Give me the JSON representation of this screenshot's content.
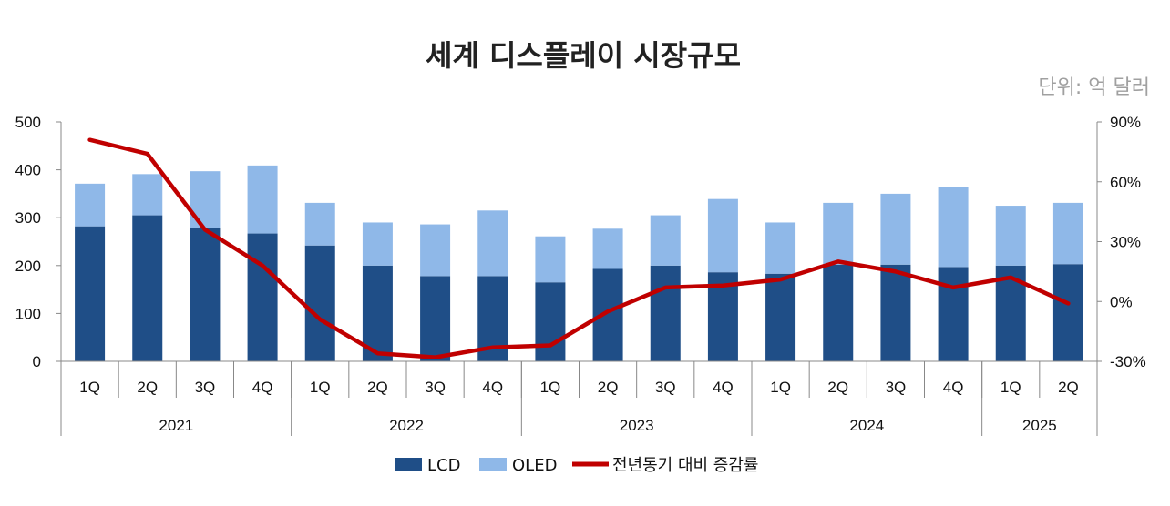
{
  "chart_data": {
    "type": "bar",
    "title": "세계 디스플레이 시장규모",
    "unit_label": "단위: 억 달러",
    "categories": [
      "1Q",
      "2Q",
      "3Q",
      "4Q",
      "1Q",
      "2Q",
      "3Q",
      "4Q",
      "1Q",
      "2Q",
      "3Q",
      "4Q",
      "1Q",
      "2Q",
      "3Q",
      "4Q",
      "1Q",
      "2Q"
    ],
    "year_groups": [
      {
        "label": "2021",
        "count": 4
      },
      {
        "label": "2022",
        "count": 4
      },
      {
        "label": "2023",
        "count": 4
      },
      {
        "label": "2024",
        "count": 4
      },
      {
        "label": "2025",
        "count": 2
      }
    ],
    "stacked": true,
    "series": [
      {
        "name": "LCD",
        "type": "bar",
        "color": "#1f4e87",
        "values": [
          282,
          305,
          278,
          267,
          242,
          200,
          178,
          178,
          165,
          193,
          200,
          186,
          183,
          202,
          202,
          197,
          200,
          203
        ]
      },
      {
        "name": "OLED",
        "type": "bar",
        "color": "#8fb8e8",
        "values": [
          89,
          86,
          119,
          142,
          89,
          90,
          108,
          137,
          96,
          84,
          105,
          153,
          107,
          129,
          148,
          167,
          125,
          128
        ]
      },
      {
        "name": "전년동기 대비 증감률",
        "type": "line",
        "color": "#c00000",
        "axis": "right",
        "values": [
          81,
          74,
          36,
          18,
          -9,
          -26,
          -28,
          -23,
          -22,
          -5,
          7,
          8,
          11,
          20,
          15,
          7,
          12,
          -1
        ]
      }
    ],
    "y_left": {
      "ylim": [
        0,
        500
      ],
      "ticks": [
        "0",
        "100",
        "200",
        "300",
        "400",
        "500"
      ]
    },
    "y_right": {
      "ylim": [
        -30,
        90
      ],
      "ticks": [
        "-30%",
        "0%",
        "30%",
        "60%",
        "90%"
      ]
    },
    "grid": false,
    "legend": "bottom-center"
  }
}
